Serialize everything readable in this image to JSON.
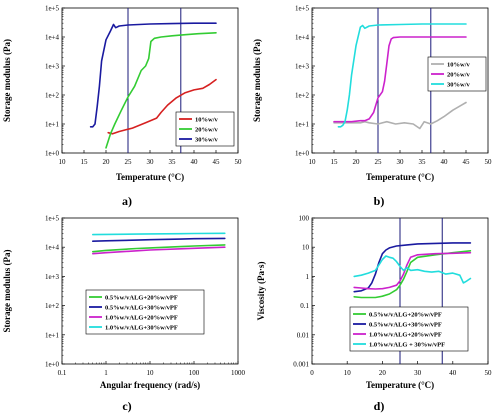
{
  "chart_data": [
    {
      "panel_label": "a)",
      "type": "line",
      "xlabel": "Temperature (°C)",
      "ylabel": "Storage modulus (Pa)",
      "xscale": "linear",
      "yscale": "log",
      "xlim": [
        10,
        50
      ],
      "ylim": [
        1,
        100000
      ],
      "xticks": [
        "10",
        "15",
        "20",
        "25",
        "30",
        "35",
        "40",
        "45",
        "50"
      ],
      "yticks": [
        "1e+0",
        "1e+1",
        "1e+2",
        "1e+3",
        "1e+4",
        "1e+5"
      ],
      "vlines": [
        25,
        37
      ],
      "legend_position": "bottom-right",
      "series": [
        {
          "name": "10%w/v",
          "color": "#d62020",
          "x": [
            20.5,
            21.5,
            23,
            26,
            29,
            31.5,
            32.5,
            34,
            36,
            38,
            40,
            42,
            43.5,
            45
          ],
          "y": [
            5,
            4.6,
            5.5,
            7.2,
            11,
            16,
            25,
            45,
            80,
            120,
            150,
            170,
            230,
            340
          ]
        },
        {
          "name": "20%w/v",
          "color": "#33cc33",
          "x": [
            20,
            21,
            22,
            23.5,
            25,
            26.5,
            28,
            29,
            29.7,
            30.2,
            31,
            32.5,
            35,
            38,
            41,
            45
          ],
          "y": [
            1.5,
            4.5,
            10,
            30,
            85,
            200,
            700,
            1000,
            1800,
            7000,
            9000,
            10000,
            11000,
            12000,
            13000,
            14000
          ]
        },
        {
          "name": "30%w/v",
          "color": "#1a1aa0",
          "x": [
            16.5,
            17,
            17.5,
            18,
            18.5,
            19,
            20,
            21,
            21.7,
            22.2,
            23,
            25,
            30,
            35,
            40,
            45
          ],
          "y": [
            8,
            8,
            10,
            40,
            200,
            1500,
            8000,
            16000,
            27000,
            21000,
            24000,
            26000,
            28000,
            29000,
            30000,
            30000
          ]
        }
      ]
    },
    {
      "panel_label": "b)",
      "type": "line",
      "xlabel": "Temperature (°C)",
      "ylabel": "Storage modulus (Pa)",
      "xscale": "linear",
      "yscale": "log",
      "xlim": [
        10,
        50
      ],
      "ylim": [
        1,
        100000
      ],
      "xticks": [
        "10",
        "15",
        "20",
        "25",
        "30",
        "35",
        "40",
        "45",
        "50"
      ],
      "yticks": [
        "1e+0",
        "1e+1",
        "1e+2",
        "1e+3",
        "1e+4",
        "1e+5"
      ],
      "vlines": [
        25,
        37
      ],
      "legend_position": "middle-right",
      "series": [
        {
          "name": "10%w/v",
          "color": "#b0b0b0",
          "x": [
            15,
            17,
            19,
            21,
            22,
            23,
            25,
            27,
            29,
            31,
            33,
            34.5,
            35.5,
            37,
            38.5,
            40,
            42,
            44,
            45
          ],
          "y": [
            11,
            11,
            11,
            11,
            12,
            11,
            10,
            12,
            10,
            11,
            10,
            7,
            12,
            10,
            13,
            18,
            30,
            45,
            55
          ]
        },
        {
          "name": "20%w/v",
          "color": "#cc22cc",
          "x": [
            15,
            17,
            19,
            21,
            22,
            23,
            24,
            25,
            26,
            26.5,
            27,
            27.5,
            28,
            28.5,
            30,
            35,
            40,
            45
          ],
          "y": [
            12,
            12,
            12,
            13,
            13,
            15,
            25,
            80,
            130,
            300,
            1200,
            5000,
            8500,
            9500,
            10000,
            10000,
            10000,
            10000
          ]
        },
        {
          "name": "30%w/v",
          "color": "#22dddd",
          "x": [
            16,
            16.5,
            17,
            17.5,
            18,
            18.5,
            19,
            20,
            21,
            21.5,
            22,
            23,
            25,
            30,
            35,
            40,
            45
          ],
          "y": [
            8,
            8,
            9,
            12,
            30,
            100,
            500,
            5000,
            22000,
            25000,
            20000,
            24000,
            26000,
            27000,
            28000,
            28000,
            28000
          ]
        }
      ]
    },
    {
      "panel_label": "c)",
      "type": "line",
      "xlabel": "Angular frequency (rad/s)",
      "ylabel": "Storage modulus (Pa)",
      "xscale": "log",
      "yscale": "log",
      "xlim": [
        0.1,
        1000
      ],
      "ylim": [
        1,
        100000
      ],
      "xticks": [
        "0.1",
        "1",
        "10",
        "100",
        "1000"
      ],
      "yticks": [
        "1e+0",
        "1e+1",
        "1e+2",
        "1e+3",
        "1e+4",
        "1e+5"
      ],
      "vlines": [],
      "legend_position": "middle-center",
      "series": [
        {
          "name": "0.5%w/vALG+20%w/vPF",
          "color": "#33cc33",
          "x": [
            0.5,
            1,
            5,
            10,
            50,
            100,
            500
          ],
          "y": [
            7000,
            7800,
            9000,
            9500,
            10500,
            11000,
            12000
          ]
        },
        {
          "name": "0.5%w/vALG+30%w/vPF",
          "color": "#1a1aa0",
          "x": [
            0.5,
            1,
            5,
            10,
            50,
            100,
            500
          ],
          "y": [
            16000,
            16500,
            17500,
            18000,
            19000,
            19500,
            20000
          ]
        },
        {
          "name": "1.0%w/vALG+20%w/vPF",
          "color": "#cc22cc",
          "x": [
            0.5,
            1,
            5,
            10,
            50,
            100,
            500
          ],
          "y": [
            6000,
            6500,
            7500,
            8000,
            8800,
            9200,
            10000
          ]
        },
        {
          "name": "1.0%w/vALG+30%w/vPF",
          "color": "#22dddd",
          "x": [
            0.5,
            1,
            5,
            10,
            50,
            100,
            500
          ],
          "y": [
            27000,
            27500,
            28000,
            28500,
            29000,
            29500,
            30000
          ]
        }
      ]
    },
    {
      "panel_label": "d)",
      "type": "line",
      "xlabel": "Temperature (°C)",
      "ylabel": "Viscosity (Pa·s)",
      "xscale": "linear",
      "yscale": "log",
      "xlim": [
        0,
        50
      ],
      "ylim": [
        0.001,
        100
      ],
      "xticks": [
        "0",
        "10",
        "20",
        "30",
        "40",
        "50"
      ],
      "yticks": [
        "0.001",
        "0.01",
        "0.1",
        "1",
        "10",
        "100"
      ],
      "vlines": [
        25,
        37
      ],
      "legend_position": "bottom-right",
      "series": [
        {
          "name": "0.5%w/vALG+20%w/vPF",
          "color": "#33cc33",
          "x": [
            12,
            14,
            16,
            18,
            20,
            22,
            24,
            25,
            26,
            27,
            28,
            30,
            35,
            40,
            45
          ],
          "y": [
            0.2,
            0.19,
            0.19,
            0.19,
            0.21,
            0.25,
            0.35,
            0.5,
            0.8,
            1.5,
            3,
            4.5,
            5.5,
            6.5,
            7.5
          ]
        },
        {
          "name": "0.5%w/vALG+30%w/vPF",
          "color": "#1a1aa0",
          "x": [
            12,
            14,
            16,
            17,
            18,
            19,
            20,
            21,
            22,
            24,
            27,
            30,
            35,
            40,
            45
          ],
          "y": [
            0.3,
            0.32,
            0.4,
            0.6,
            1.2,
            3,
            6,
            8,
            9.5,
            11,
            12,
            13,
            13.5,
            14,
            14
          ]
        },
        {
          "name": "1.0%w/vALG+20%w/vPF",
          "color": "#cc22cc",
          "x": [
            12,
            14,
            16,
            18,
            20,
            22,
            24,
            25,
            26,
            27,
            28,
            30,
            35,
            40,
            45
          ],
          "y": [
            0.42,
            0.4,
            0.38,
            0.37,
            0.38,
            0.42,
            0.5,
            0.7,
            1.2,
            2.5,
            4.5,
            5.5,
            6,
            6.2,
            6.5
          ]
        },
        {
          "name": "1.0%w/vALG + 30%w/vPF",
          "color": "#22dddd",
          "x": [
            12,
            14,
            16,
            18,
            20,
            21,
            22,
            23,
            24,
            25,
            26,
            27,
            28,
            30,
            32,
            34,
            36,
            38,
            40,
            42,
            43,
            44,
            45
          ],
          "y": [
            1,
            1.1,
            1.3,
            1.6,
            3.8,
            5,
            4.5,
            4.2,
            3.2,
            2.2,
            1.6,
            2,
            1.6,
            1.7,
            1.5,
            1.4,
            1.5,
            1.2,
            1.3,
            1.1,
            0.6,
            0.7,
            0.85
          ]
        }
      ]
    }
  ]
}
